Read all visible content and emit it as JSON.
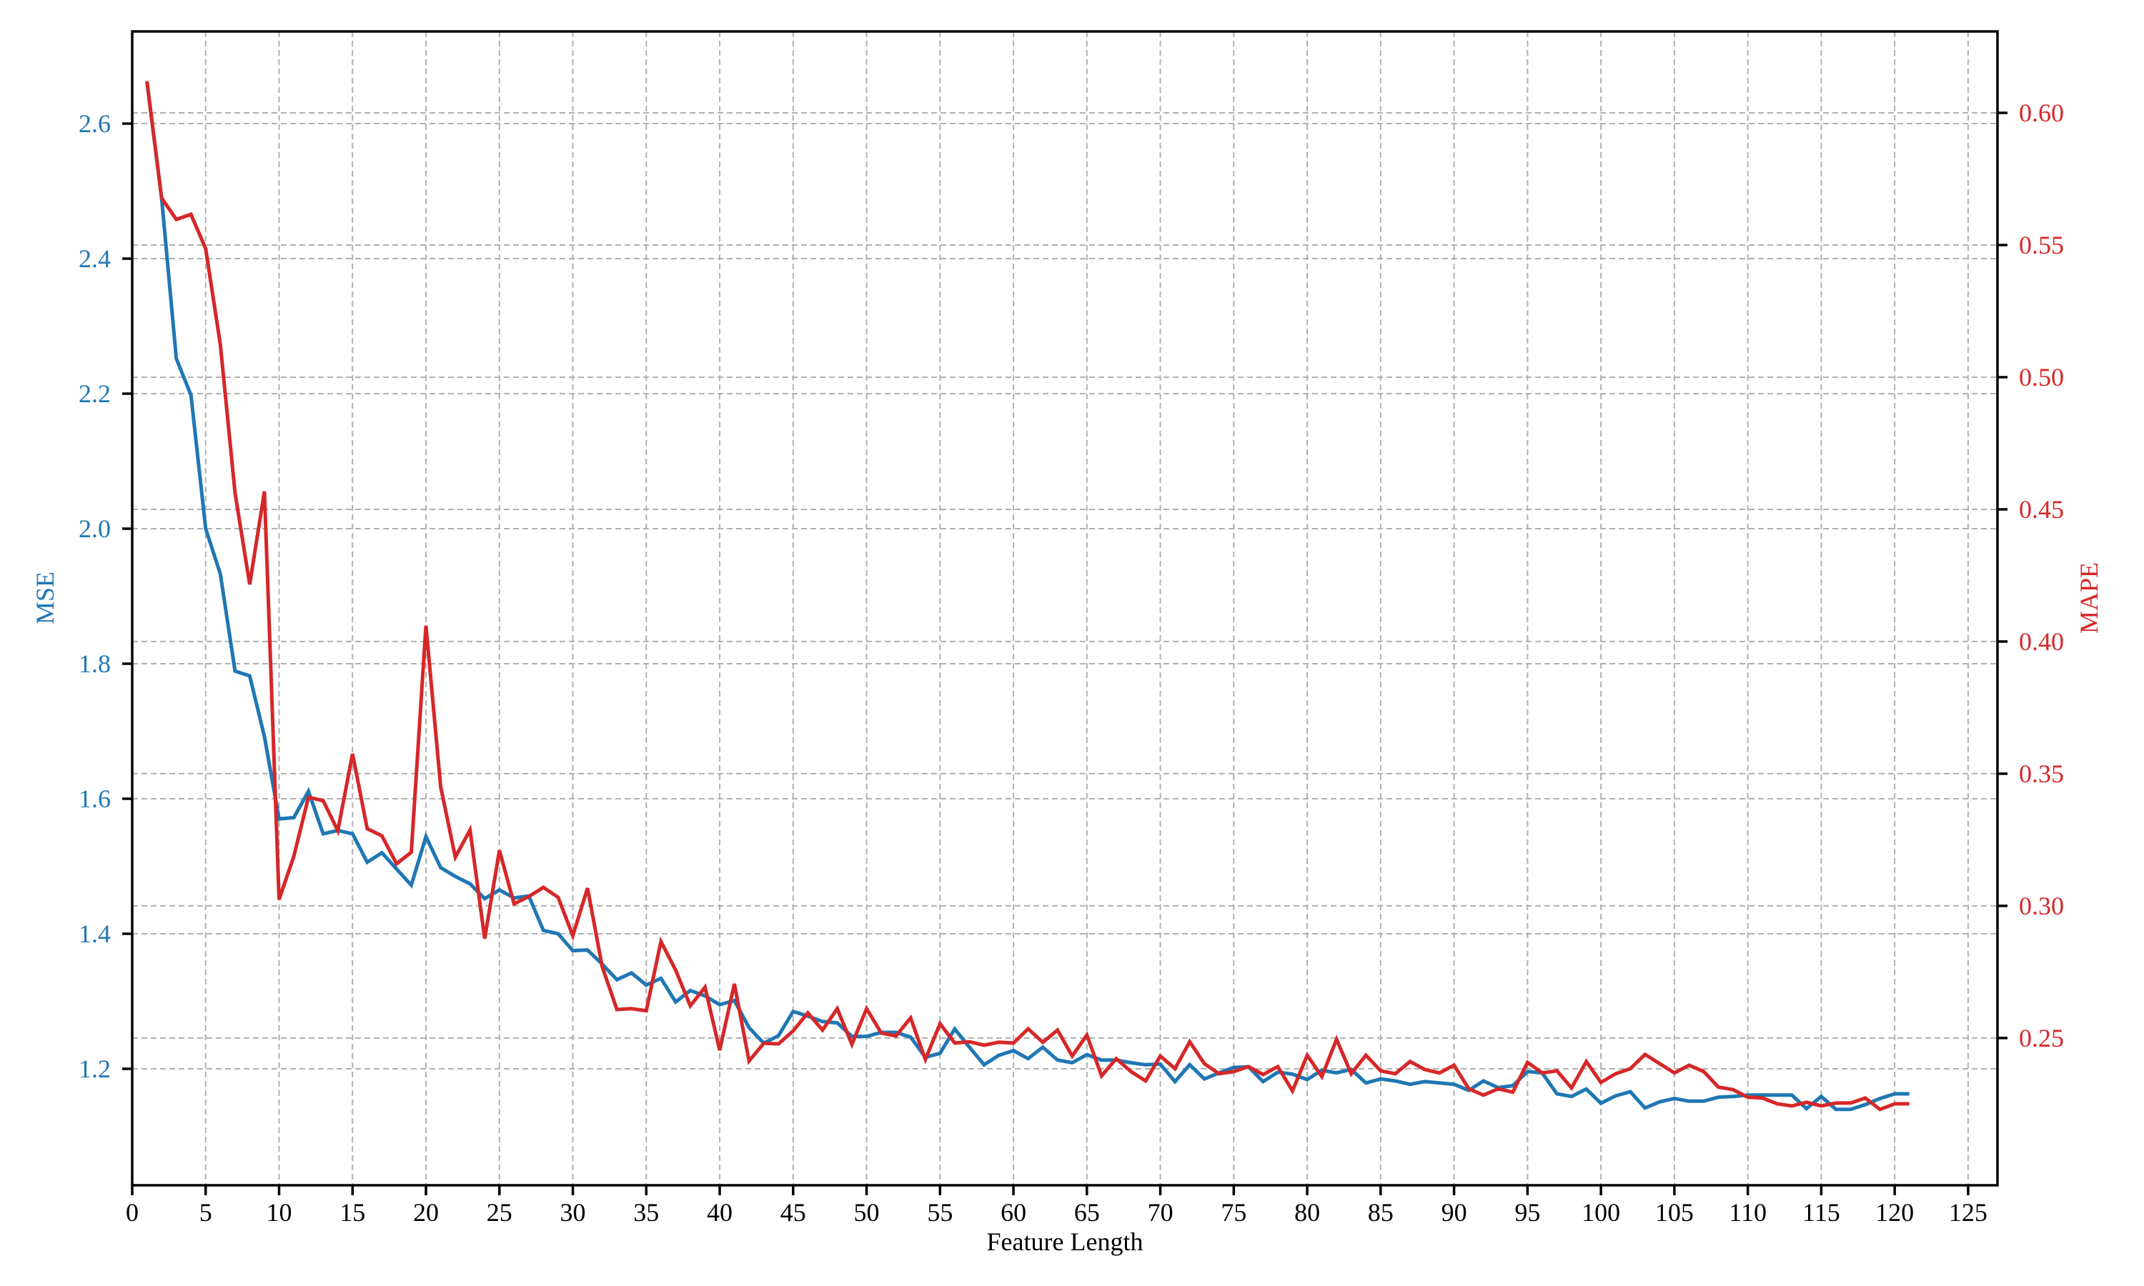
{
  "chart_data": {
    "type": "line",
    "title": "",
    "xlabel": "Feature Length",
    "ylabel": "MSE",
    "ylabel_right": "MAPE",
    "xlim": [
      0,
      127
    ],
    "ylim": [
      1.0275,
      2.7365
    ],
    "ylim_right": [
      0.1943,
      0.6308
    ],
    "grid": true,
    "legend": null,
    "x_ticks": [
      0,
      5,
      10,
      15,
      20,
      25,
      30,
      35,
      40,
      45,
      50,
      55,
      60,
      65,
      70,
      75,
      80,
      85,
      90,
      95,
      100,
      105,
      110,
      115,
      120,
      125
    ],
    "y_ticks": [
      1.2,
      1.4,
      1.6,
      1.8,
      2.0,
      2.2,
      2.4,
      2.6
    ],
    "y_tick_labels": [
      "1.2",
      "1.4",
      "1.6",
      "1.8",
      "2.0",
      "2.2",
      "2.4",
      "2.6"
    ],
    "y_ticks_right": [
      0.25,
      0.3,
      0.35,
      0.4,
      0.45,
      0.5,
      0.55,
      0.6
    ],
    "y_tick_labels_right": [
      "0.25",
      "0.30",
      "0.35",
      "0.40",
      "0.45",
      "0.50",
      "0.55",
      "0.60"
    ],
    "x": [
      1,
      2,
      3,
      4,
      5,
      6,
      7,
      8,
      9,
      10,
      11,
      12,
      13,
      14,
      15,
      16,
      17,
      18,
      19,
      20,
      21,
      22,
      23,
      24,
      25,
      26,
      27,
      28,
      29,
      30,
      31,
      32,
      33,
      34,
      35,
      36,
      37,
      38,
      39,
      40,
      41,
      42,
      43,
      44,
      45,
      46,
      47,
      48,
      49,
      50,
      51,
      52,
      53,
      54,
      55,
      56,
      57,
      58,
      59,
      60,
      61,
      62,
      63,
      64,
      65,
      66,
      67,
      68,
      69,
      70,
      71,
      72,
      73,
      74,
      75,
      76,
      77,
      78,
      79,
      80,
      81,
      82,
      83,
      84,
      85,
      86,
      87,
      88,
      89,
      90,
      91,
      92,
      93,
      94,
      95,
      96,
      97,
      98,
      99,
      100,
      101,
      102,
      103,
      104,
      105,
      106,
      107,
      108,
      109,
      110,
      111,
      112,
      113,
      114,
      115,
      116,
      117,
      118,
      119,
      120,
      121
    ],
    "series": [
      {
        "name": "MSE",
        "axis": "left",
        "color": "#1f77b4",
        "values": [
          2.662,
          2.49,
          2.252,
          2.198,
          2.0,
          1.933,
          1.789,
          1.782,
          1.692,
          1.57,
          1.572,
          1.611,
          1.548,
          1.553,
          1.548,
          1.506,
          1.52,
          1.496,
          1.472,
          1.544,
          1.498,
          1.485,
          1.474,
          1.452,
          1.465,
          1.453,
          1.456,
          1.405,
          1.4,
          1.375,
          1.376,
          1.355,
          1.332,
          1.342,
          1.324,
          1.334,
          1.299,
          1.316,
          1.308,
          1.295,
          1.301,
          1.261,
          1.238,
          1.249,
          1.285,
          1.278,
          1.27,
          1.268,
          1.248,
          1.248,
          1.254,
          1.254,
          1.247,
          1.217,
          1.223,
          1.259,
          1.232,
          1.206,
          1.22,
          1.227,
          1.215,
          1.232,
          1.213,
          1.209,
          1.221,
          1.213,
          1.213,
          1.209,
          1.206,
          1.207,
          1.181,
          1.206,
          1.185,
          1.194,
          1.202,
          1.203,
          1.181,
          1.195,
          1.192,
          1.184,
          1.198,
          1.194,
          1.199,
          1.179,
          1.185,
          1.182,
          1.177,
          1.181,
          1.179,
          1.177,
          1.168,
          1.182,
          1.172,
          1.175,
          1.196,
          1.194,
          1.163,
          1.159,
          1.17,
          1.149,
          1.16,
          1.166,
          1.142,
          1.151,
          1.156,
          1.152,
          1.152,
          1.158,
          1.159,
          1.161,
          1.161,
          1.161,
          1.161,
          1.141,
          1.159,
          1.14,
          1.14,
          1.147,
          1.156,
          1.163,
          1.163
        ]
      },
      {
        "name": "MAPE",
        "axis": "right",
        "color": "#d62728",
        "values": [
          0.612,
          0.5678,
          0.5597,
          0.5616,
          0.5486,
          0.5124,
          0.4562,
          0.4216,
          0.4568,
          0.3024,
          0.3187,
          0.3411,
          0.3398,
          0.3284,
          0.3575,
          0.3292,
          0.3265,
          0.3159,
          0.3203,
          0.406,
          0.3451,
          0.3184,
          0.3287,
          0.2876,
          0.321,
          0.3008,
          0.3035,
          0.307,
          0.3032,
          0.2887,
          0.3067,
          0.277,
          0.2608,
          0.2611,
          0.2603,
          0.2865,
          0.2757,
          0.2622,
          0.2692,
          0.2454,
          0.2705,
          0.2413,
          0.248,
          0.2478,
          0.2527,
          0.2595,
          0.253,
          0.2611,
          0.2476,
          0.2611,
          0.2519,
          0.2508,
          0.2576,
          0.2419,
          0.2554,
          0.2481,
          0.2486,
          0.2473,
          0.2484,
          0.2481,
          0.2535,
          0.2484,
          0.253,
          0.2432,
          0.2511,
          0.2357,
          0.2422,
          0.2373,
          0.2338,
          0.2432,
          0.2384,
          0.2486,
          0.2403,
          0.2365,
          0.2373,
          0.2392,
          0.2362,
          0.2392,
          0.23,
          0.2435,
          0.2354,
          0.2495,
          0.2365,
          0.2435,
          0.2376,
          0.2365,
          0.2411,
          0.2381,
          0.2368,
          0.2397,
          0.2308,
          0.2284,
          0.2308,
          0.2295,
          0.2408,
          0.2368,
          0.2376,
          0.2311,
          0.2411,
          0.2332,
          0.2365,
          0.2384,
          0.2438,
          0.2403,
          0.2368,
          0.2397,
          0.2373,
          0.2314,
          0.2305,
          0.2276,
          0.2273,
          0.2251,
          0.2243,
          0.2257,
          0.2243,
          0.2254,
          0.2254,
          0.2273,
          0.223,
          0.2251,
          0.2251
        ]
      }
    ]
  },
  "colors": {
    "mse": "#1f77b4",
    "mape": "#d62728",
    "grid": "#b0b0b0",
    "axis": "#000000"
  }
}
